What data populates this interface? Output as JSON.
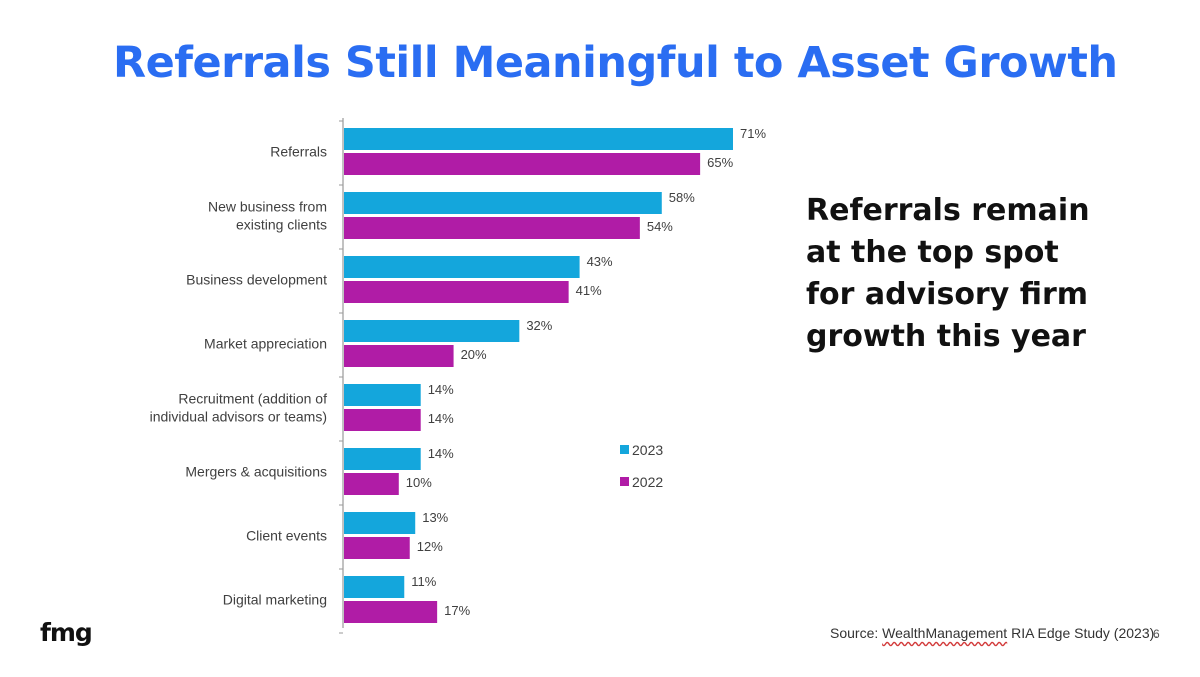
{
  "slide": {
    "title": "Referrals Still Meaningful to Asset Growth",
    "callout": "Referrals remain at the top spot for advisory firm growth this year",
    "logo": "fmg",
    "source_prefix": "Source: ",
    "source_link": "WealthManagement",
    "source_suffix": " RIA Edge Study (2023).",
    "page_number": "6"
  },
  "chart_data": {
    "type": "bar",
    "orientation": "horizontal",
    "categories": [
      [
        "Referrals"
      ],
      [
        "New business from",
        "existing clients"
      ],
      [
        "Business development"
      ],
      [
        "Market appreciation"
      ],
      [
        "Recruitment (addition of",
        "individual advisors or teams)"
      ],
      [
        "Mergers & acquisitions"
      ],
      [
        "Client events"
      ],
      [
        "Digital marketing"
      ]
    ],
    "series": [
      {
        "name": "2023",
        "color": "#14a6dc",
        "values": [
          71,
          58,
          43,
          32,
          14,
          14,
          13,
          11
        ],
        "labels": [
          "71%",
          "58%",
          "43%",
          "32%",
          "14%",
          "14%",
          "13%",
          "11%"
        ]
      },
      {
        "name": "2022",
        "color": "#b01ca6",
        "values": [
          65,
          54,
          41,
          20,
          14,
          10,
          12,
          17
        ],
        "labels": [
          "65%",
          "54%",
          "41%",
          "20%",
          "14%",
          "10%",
          "12%",
          "17%"
        ]
      }
    ],
    "xlim": [
      0,
      71
    ],
    "grid": false,
    "legend": "right"
  }
}
